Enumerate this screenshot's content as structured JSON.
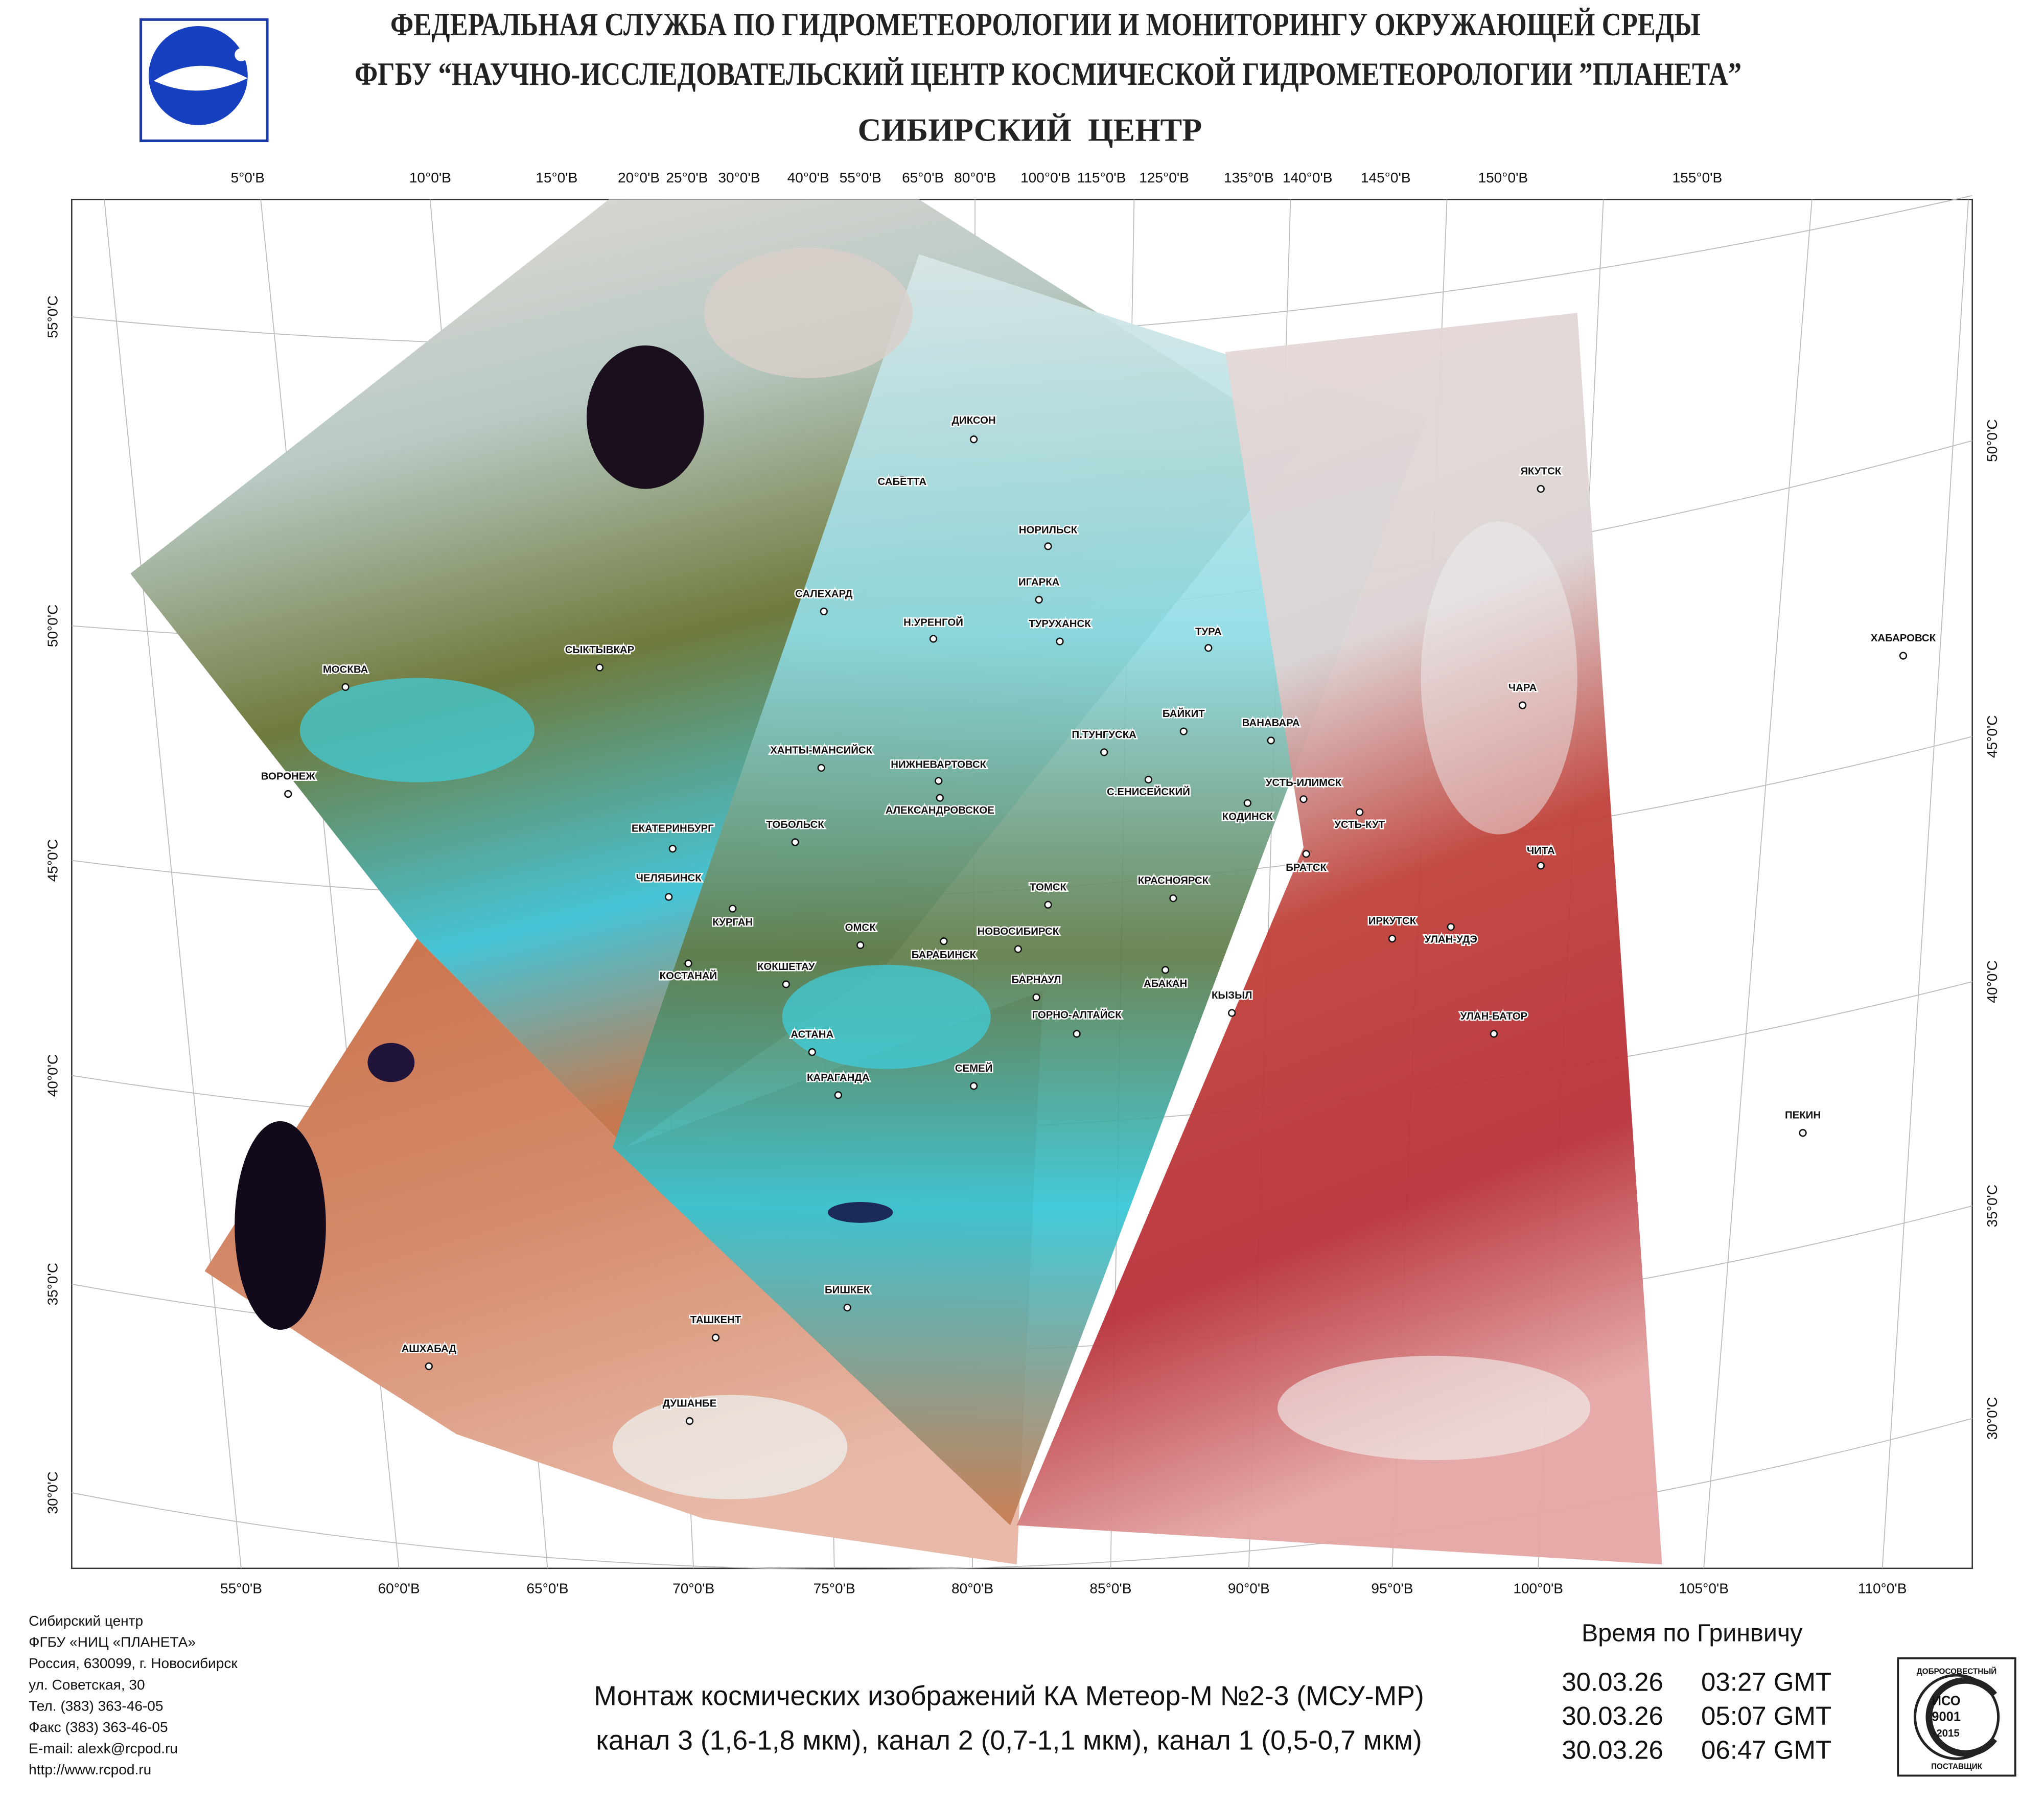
{
  "header": {
    "line1": "ФЕДЕРАЛЬНАЯ СЛУЖБА ПО ГИДРОМЕТЕОРОЛОГИИ И МОНИТОРИНГУ ОКРУЖАЮЩЕЙ СРЕДЫ",
    "line2": "ФГБУ “НАУЧНО-ИССЛЕДОВАТЕЛЬСКИЙ ЦЕНТР КОСМИЧЕСКОЙ ГИДРОМЕТЕОРОЛОГИИ ”ПЛАНЕТА”",
    "line3": "СИБИРСКИЙ  ЦЕНТР"
  },
  "map": {
    "top_labels": [
      "5°0'В",
      "10°0'В",
      "15°0'В",
      "20°0'В",
      "25°0'В",
      "30°0'В",
      "40°0'В",
      "55°0'В",
      "65°0'В",
      "80°0'В",
      "100°0'В",
      "115°0'В",
      "125°0'В",
      "135°0'В",
      "140°0'В",
      "145°0'В",
      "150°0'В",
      "155°0'В"
    ],
    "bottom_labels": [
      "55°0'В",
      "60°0'В",
      "65°0'В",
      "70°0'В",
      "75°0'В",
      "80°0'В",
      "85°0'В",
      "90°0'В",
      "95°0'В",
      "100°0'В",
      "105°0'В",
      "110°0'В"
    ],
    "left_labels": [
      "55°0'С",
      "50°0'С",
      "45°0'С",
      "40°0'С",
      "35°0'С",
      "30°0'С"
    ],
    "right_labels": [
      "50°0'С",
      "45°0'С",
      "40°0'С",
      "35°0'С",
      "30°0'С"
    ],
    "cities": [
      "ДИКСОН",
      "САБЕТТА",
      "НОРИЛЬСК",
      "ИГАРКА",
      "ТУРУХАНСК",
      "САЛЕХАРД",
      "Н.УРЕНГОЙ",
      "ТУРА",
      "СЫКТЫВКАР",
      "МОСКВА",
      "ЧАРА",
      "ХАБАРОВСК",
      "ЯКУТСК",
      "БАЙКИТ",
      "ВАНАВАРА",
      "П.ТУНГУСКА",
      "ХАНТЫ-МАНСИЙСК",
      "ВОРОНЕЖ",
      "НИЖНЕВАРТОВСК",
      "С.ЕНИСЕЙСКИЙ",
      "АЛЕКСАНДРОВСКОЕ",
      "УСТЬ-ИЛИМСК",
      "КОДИНСК",
      "УСТЬ-КУТ",
      "ТОБОЛЬСК",
      "ЕКАТЕРИНБУРГ",
      "БРАТСК",
      "ЧИТА",
      "ТОМСК",
      "КРАСНОЯРСК",
      "ЧЕЛЯБИНСК",
      "КУРГАН",
      "ОМСК",
      "НОВОСИБИРСК",
      "БАРАБИНСК",
      "ИРКУТСК",
      "УЛАН-УДЭ",
      "КОСТАНАЙ",
      "КОКШЕТАУ",
      "БАРНАУЛ",
      "АБАКАН",
      "КЫЗЫЛ",
      "ГОРНО-АЛТАЙСК",
      "УЛАН-БАТОР",
      "АСТАНА",
      "КАРАГАНДА",
      "СЕМЕЙ",
      "ПЕКИН",
      "БИШКЕК",
      "ТАШКЕНТ",
      "АШХАБАД",
      "ДУШАНБЕ"
    ]
  },
  "footer": {
    "address": [
      "Сибирский центр",
      "ФГБУ «НИЦ «ПЛАНЕТА»",
      "Россия, 630099, г. Новосибирск",
      "ул. Советская, 30",
      "Тел. (383) 363-46-05",
      "Факс (383) 363-46-05",
      "E-mail: alexk@rcpod.ru",
      "http://www.rcpod.ru"
    ],
    "caption": [
      "Монтаж космических изображений КА Метеор-М №2-3 (МСУ-МР)",
      "канал 3 (1,6-1,8 мкм), канал 2 (0,7-1,1 мкм), канал 1 (0,5-0,7 мкм)"
    ],
    "time_title": "Время по Гринвичу",
    "times": [
      {
        "date": "30.03.26",
        "time": "03:27 GMT"
      },
      {
        "date": "30.03.26",
        "time": "05:07 GMT"
      },
      {
        "date": "30.03.26",
        "time": "06:47 GMT"
      }
    ]
  },
  "iso_badge": {
    "top": "ДОБРОСОВЕСТНЫЙ",
    "name": "ИСО",
    "number": "9001",
    "year": "-2015",
    "bottom": "ПОСТАВЩИК"
  }
}
